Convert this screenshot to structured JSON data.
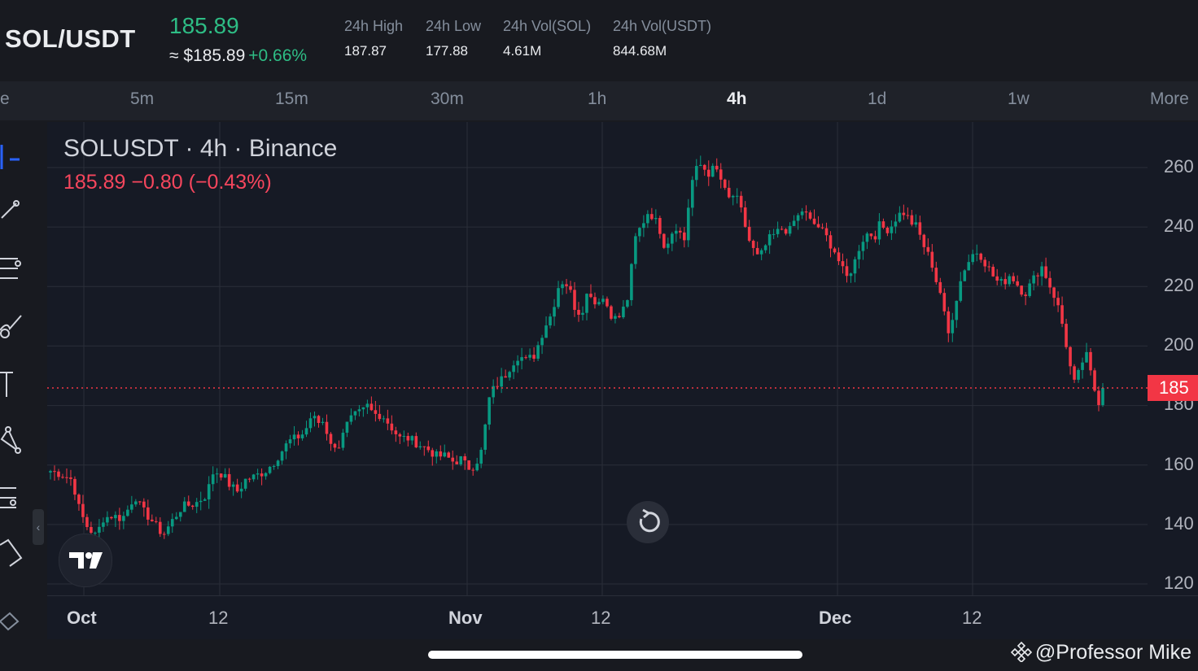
{
  "header": {
    "pair": "SOL/USDT",
    "price": "185.89",
    "approx_price": "≈ $185.89",
    "change_pct": "+0.66%",
    "stats": [
      {
        "label": "24h High",
        "value": "187.87"
      },
      {
        "label": "24h Low",
        "value": "177.88"
      },
      {
        "label": "24h Vol(SOL)",
        "value": "4.61M"
      },
      {
        "label": "24h Vol(USDT)",
        "value": "844.68M"
      }
    ]
  },
  "timeframes": {
    "cut_left": "e",
    "items": [
      "5m",
      "15m",
      "30m",
      "1h",
      "4h",
      "1d",
      "1w"
    ],
    "active": "4h",
    "more": "More"
  },
  "toolbar": {
    "icons": [
      "cursor-crosshair-icon",
      "trend-line-icon",
      "fib-retracement-icon",
      "brush-icon",
      "text-icon",
      "pattern-icon",
      "prediction-icon",
      "measure-icon",
      "eraser-icon"
    ]
  },
  "chart_legend": {
    "title": "SOLUSDT · 4h · Binance",
    "ohlc": "185.89  −0.80 (−0.43%)"
  },
  "chart_data": {
    "type": "candlestick",
    "title": "SOLUSDT · 4h · Binance",
    "y_ticks": [
      "260",
      "240",
      "220",
      "200",
      "180",
      "160",
      "140",
      "120"
    ],
    "ylim": [
      118,
      265
    ],
    "x_ticks": [
      {
        "label": "Oct",
        "month": true
      },
      {
        "label": "12",
        "month": false
      },
      {
        "label": "Nov",
        "month": true
      },
      {
        "label": "12",
        "month": false
      },
      {
        "label": "Dec",
        "month": true
      },
      {
        "label": "12",
        "month": false
      }
    ],
    "last_price": 185.89,
    "last_price_label": "185",
    "grid": true,
    "colors": {
      "up": "#089981",
      "down": "#f23645",
      "grid": "#2a2e39"
    },
    "close_path": [
      [
        0,
        158
      ],
      [
        12,
        157
      ],
      [
        25,
        155
      ],
      [
        32,
        146
      ],
      [
        40,
        140
      ],
      [
        52,
        136
      ],
      [
        60,
        142
      ],
      [
        70,
        143
      ],
      [
        82,
        142
      ],
      [
        90,
        146
      ],
      [
        96,
        150
      ],
      [
        104,
        145
      ],
      [
        114,
        142
      ],
      [
        124,
        138
      ],
      [
        130,
        137
      ],
      [
        136,
        140
      ],
      [
        150,
        146
      ],
      [
        165,
        147
      ],
      [
        178,
        150
      ],
      [
        186,
        158
      ],
      [
        196,
        157
      ],
      [
        205,
        153
      ],
      [
        214,
        151
      ],
      [
        222,
        155
      ],
      [
        232,
        156
      ],
      [
        245,
        158
      ],
      [
        255,
        161
      ],
      [
        262,
        164
      ],
      [
        272,
        168
      ],
      [
        280,
        169
      ],
      [
        290,
        171
      ],
      [
        298,
        177
      ],
      [
        304,
        174
      ],
      [
        310,
        175
      ],
      [
        318,
        169
      ],
      [
        326,
        164
      ],
      [
        334,
        172
      ],
      [
        344,
        176
      ],
      [
        356,
        178
      ],
      [
        362,
        180
      ],
      [
        368,
        177
      ],
      [
        378,
        177
      ],
      [
        388,
        173
      ],
      [
        398,
        169
      ],
      [
        408,
        169
      ],
      [
        420,
        167
      ],
      [
        432,
        165
      ],
      [
        440,
        163
      ],
      [
        450,
        163
      ],
      [
        460,
        161
      ],
      [
        468,
        162
      ],
      [
        476,
        159
      ],
      [
        484,
        160
      ],
      [
        492,
        165
      ],
      [
        500,
        182
      ],
      [
        506,
        186
      ],
      [
        512,
        188
      ],
      [
        518,
        190
      ],
      [
        526,
        194
      ],
      [
        534,
        197
      ],
      [
        542,
        195
      ],
      [
        552,
        197
      ],
      [
        558,
        202
      ],
      [
        564,
        207
      ],
      [
        570,
        210
      ],
      [
        576,
        216
      ],
      [
        580,
        221
      ],
      [
        586,
        222
      ],
      [
        592,
        219
      ],
      [
        600,
        211
      ],
      [
        608,
        213
      ],
      [
        614,
        220
      ],
      [
        620,
        214
      ],
      [
        628,
        217
      ],
      [
        636,
        213
      ],
      [
        642,
        209
      ],
      [
        650,
        210
      ],
      [
        658,
        216
      ],
      [
        662,
        225
      ],
      [
        668,
        238
      ],
      [
        674,
        240
      ],
      [
        680,
        245
      ],
      [
        686,
        244
      ],
      [
        694,
        240
      ],
      [
        700,
        234
      ],
      [
        706,
        236
      ],
      [
        712,
        241
      ],
      [
        718,
        238
      ],
      [
        722,
        234
      ],
      [
        726,
        243
      ],
      [
        730,
        254
      ],
      [
        736,
        259
      ],
      [
        742,
        261
      ],
      [
        750,
        258
      ],
      [
        758,
        260
      ],
      [
        766,
        255
      ],
      [
        772,
        249
      ],
      [
        780,
        251
      ],
      [
        786,
        247
      ],
      [
        790,
        243
      ],
      [
        796,
        236
      ],
      [
        802,
        232
      ],
      [
        808,
        229
      ],
      [
        814,
        233
      ],
      [
        820,
        236
      ],
      [
        828,
        238
      ],
      [
        836,
        240
      ],
      [
        842,
        238
      ],
      [
        848,
        242
      ],
      [
        854,
        244
      ],
      [
        858,
        246
      ],
      [
        866,
        242
      ],
      [
        876,
        240
      ],
      [
        884,
        237
      ],
      [
        890,
        234
      ],
      [
        896,
        231
      ],
      [
        902,
        226
      ],
      [
        908,
        223
      ],
      [
        912,
        225
      ],
      [
        918,
        229
      ],
      [
        924,
        235
      ],
      [
        932,
        238
      ],
      [
        940,
        237
      ],
      [
        946,
        241
      ],
      [
        952,
        239
      ],
      [
        958,
        240
      ],
      [
        966,
        244
      ],
      [
        974,
        245
      ],
      [
        980,
        242
      ],
      [
        988,
        240
      ],
      [
        994,
        235
      ],
      [
        1000,
        231
      ],
      [
        1004,
        229
      ],
      [
        1010,
        222
      ],
      [
        1016,
        217
      ],
      [
        1020,
        209
      ],
      [
        1024,
        204
      ],
      [
        1030,
        212
      ],
      [
        1036,
        220
      ],
      [
        1042,
        226
      ],
      [
        1048,
        229
      ],
      [
        1054,
        232
      ],
      [
        1060,
        231
      ],
      [
        1066,
        228
      ],
      [
        1072,
        225
      ],
      [
        1078,
        222
      ],
      [
        1086,
        221
      ],
      [
        1094,
        224
      ],
      [
        1100,
        222
      ],
      [
        1106,
        219
      ],
      [
        1112,
        218
      ],
      [
        1118,
        221
      ],
      [
        1124,
        224
      ],
      [
        1130,
        227
      ],
      [
        1136,
        223
      ],
      [
        1140,
        220
      ],
      [
        1146,
        216
      ],
      [
        1152,
        210
      ],
      [
        1158,
        201
      ],
      [
        1164,
        191
      ],
      [
        1168,
        187
      ],
      [
        1174,
        192
      ],
      [
        1180,
        198
      ],
      [
        1184,
        194
      ],
      [
        1188,
        188
      ],
      [
        1192,
        184
      ],
      [
        1196,
        181
      ],
      [
        1200,
        186
      ]
    ]
  },
  "chart_controls": {
    "reset_icon": "reset-view-icon",
    "logo_icon": "tradingview-logo-icon"
  },
  "watermark": "@Professor Mike"
}
